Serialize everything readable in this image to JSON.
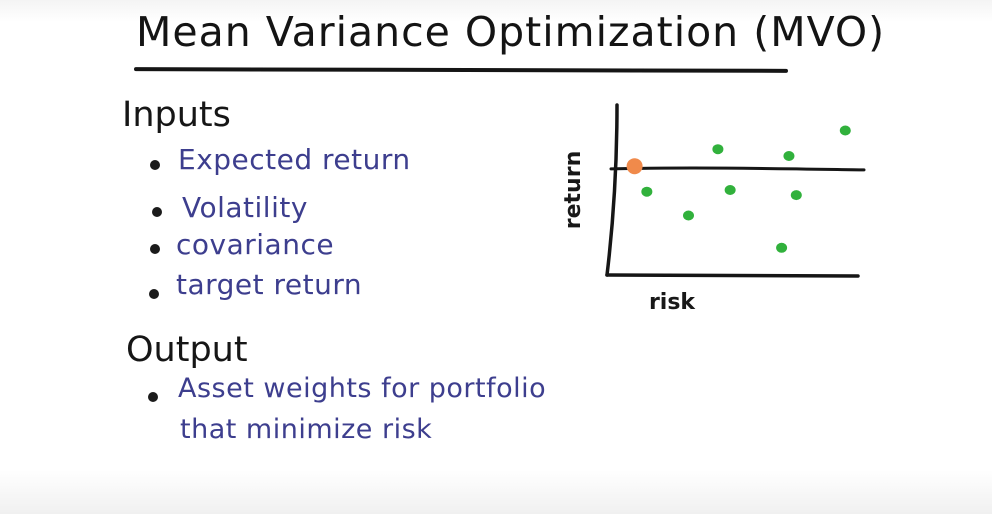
{
  "title": "Mean Variance Optimization (MVO)",
  "inputs": {
    "heading": "Inputs",
    "items": [
      "Expected return",
      "Volatility",
      "covariance",
      "target return"
    ]
  },
  "output": {
    "heading": "Output",
    "lines": [
      "Asset weights for portfolio",
      "that minimize risk"
    ]
  },
  "chart_data": {
    "type": "scatter",
    "xlabel": "risk",
    "ylabel": "return",
    "target_return_line": true,
    "highlight_color": "#f08a4b",
    "point_color": "#31b13c",
    "points": [
      {
        "risk": 0.08,
        "return": 0.64,
        "highlight": true
      },
      {
        "risk": 0.42,
        "return": 0.74
      },
      {
        "risk": 0.71,
        "return": 0.7
      },
      {
        "risk": 0.94,
        "return": 0.85
      },
      {
        "risk": 0.13,
        "return": 0.49
      },
      {
        "risk": 0.47,
        "return": 0.5
      },
      {
        "risk": 0.74,
        "return": 0.47
      },
      {
        "risk": 0.3,
        "return": 0.35
      },
      {
        "risk": 0.68,
        "return": 0.16
      }
    ],
    "target_return_level": 0.63,
    "xlim": [
      0,
      1
    ],
    "ylim": [
      0,
      1
    ]
  },
  "colors": {
    "ink": "#161616",
    "bullet_text": "#3d3e8e"
  }
}
